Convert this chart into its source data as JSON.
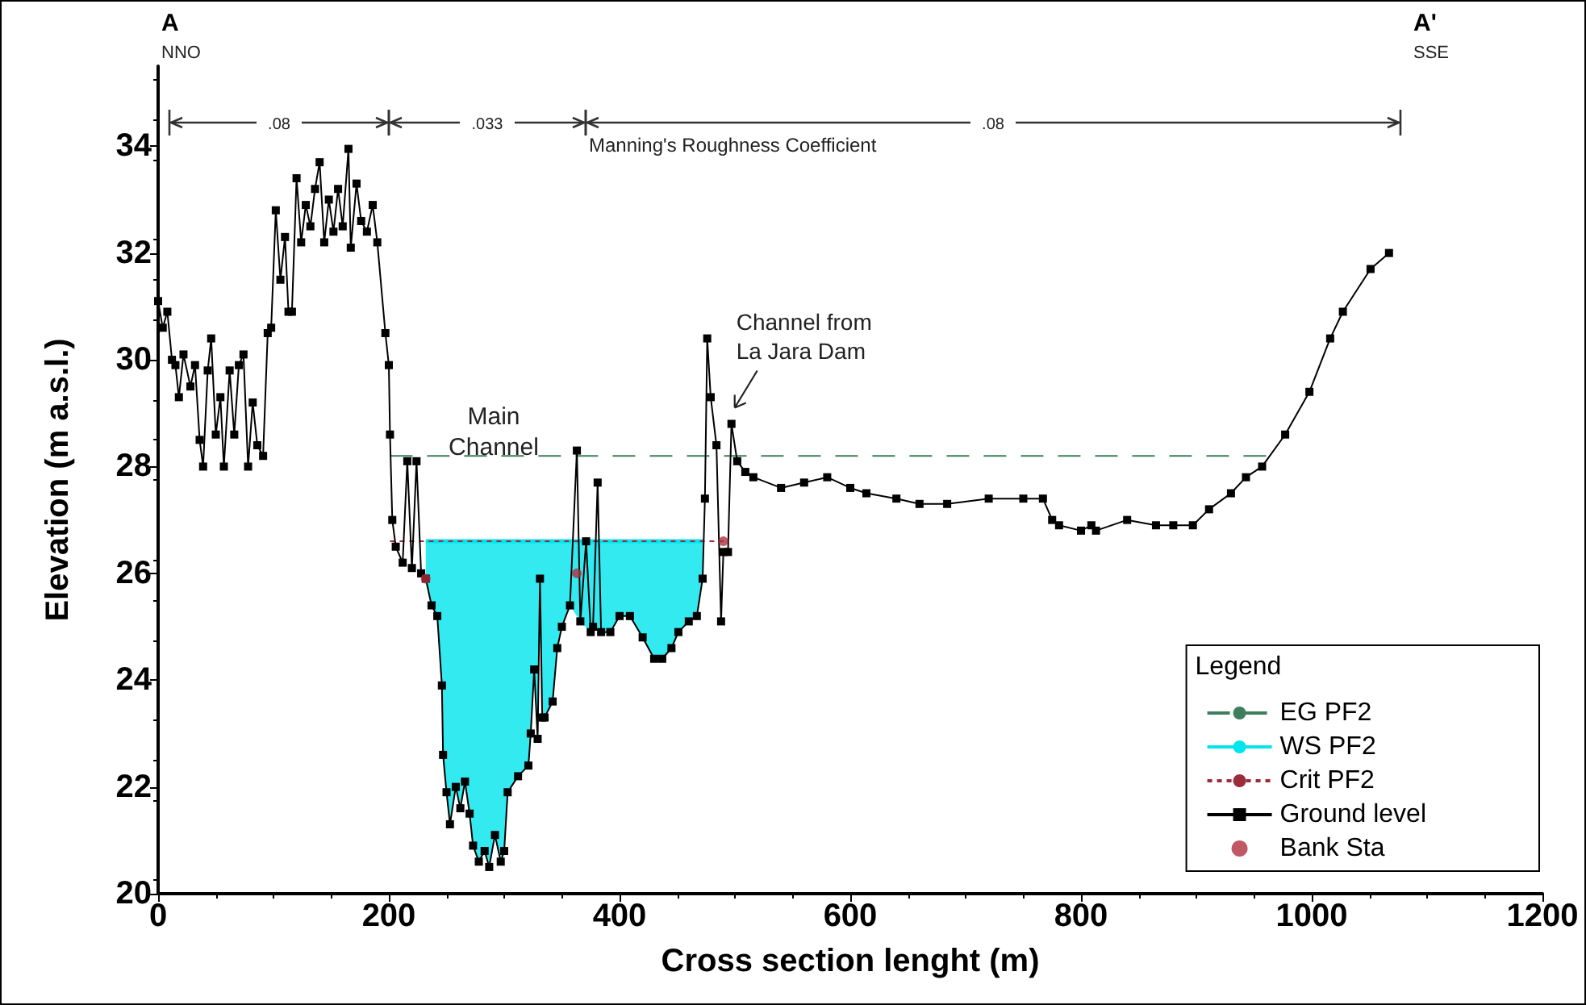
{
  "chart_data": {
    "type": "line",
    "xlabel": "Cross section lenght (m)",
    "ylabel": "Elevation (m a.s.l.)",
    "xlim": [
      0,
      1200
    ],
    "xticks": [
      0,
      200,
      400,
      600,
      800,
      1000,
      1200
    ],
    "ylim": [
      20,
      35.5
    ],
    "yticks": [
      20,
      22,
      24,
      26,
      28,
      30,
      32,
      34
    ],
    "grid": false,
    "legend": "bottom right",
    "legend_title": "Legend",
    "series": [
      {
        "name": "EG PF2",
        "type": "line",
        "color": "#3c7f5a",
        "line_style": "dashed",
        "marker": "none",
        "x": [
          201,
          962
        ],
        "values": [
          28.2,
          28.2
        ]
      },
      {
        "name": "WS PF2",
        "type": "line",
        "color": "#00e5ee",
        "x": [
          232,
          237,
          242,
          246,
          247,
          250,
          253,
          258,
          262,
          266,
          270,
          273,
          278,
          283,
          287,
          292,
          297,
          300,
          303,
          312,
          321,
          323,
          326,
          329,
          331,
          333,
          335,
          342,
          346,
          350,
          357,
          366,
          375,
          377,
          384,
          392,
          400,
          409,
          420,
          430,
          437,
          445,
          451,
          460,
          467,
          472
        ],
        "values": [
          26.6,
          26.6,
          26.6,
          26.6,
          26.6,
          26.6,
          26.6,
          26.6,
          26.6,
          26.6,
          26.6,
          26.6,
          26.6,
          26.6,
          26.6,
          26.6,
          26.6,
          26.6,
          26.6,
          26.6,
          26.6,
          26.6,
          26.6,
          26.6,
          26.6,
          26.6,
          26.6,
          26.6,
          26.6,
          26.6,
          26.6,
          26.6,
          26.6,
          26.6,
          26.6,
          26.6,
          26.6,
          26.6,
          26.6,
          26.6,
          26.6,
          26.6,
          26.6,
          26.6,
          26.6,
          26.6
        ],
        "upper": [
          26.6,
          26.6,
          26.6,
          26.6,
          26.6,
          26.6,
          26.6,
          26.6,
          26.6,
          26.6,
          26.6,
          26.6,
          26.6,
          26.6,
          26.6,
          26.6,
          26.6,
          26.6,
          26.6,
          26.6,
          26.6,
          26.6,
          26.6,
          26.6,
          26.6,
          26.6,
          26.6,
          26.6,
          26.6,
          26.6,
          26.6,
          26.6,
          26.6,
          26.6,
          26.6,
          26.6,
          26.6,
          26.6,
          26.6,
          26.6,
          26.6,
          26.6,
          26.6,
          26.6,
          26.6,
          26.6
        ],
        "lower": [
          25.9,
          25.4,
          25.2,
          23.9,
          22.6,
          21.9,
          21.3,
          22.0,
          21.6,
          22.1,
          21.5,
          20.9,
          20.6,
          20.8,
          20.5,
          21.1,
          20.6,
          20.8,
          21.9,
          22.2,
          22.4,
          23.0,
          24.2,
          22.9,
          25.9,
          23.3,
          23.3,
          23.6,
          24.6,
          25.0,
          25.4,
          25.1,
          24.9,
          25.0,
          24.9,
          24.9,
          25.2,
          25.2,
          24.8,
          24.4,
          24.4,
          24.6,
          24.9,
          25.1,
          25.2,
          25.9
        ]
      },
      {
        "name": "Crit PF2",
        "color": "#9b2c3c",
        "line_style": "dotted",
        "marker": "none",
        "x": [
          201,
          494
        ],
        "values": [
          26.6,
          26.6
        ]
      },
      {
        "name": "Ground level",
        "color": "#000000",
        "line_style": "solid",
        "marker": "square",
        "x": [
          0,
          4,
          8,
          12,
          15,
          18,
          22,
          28,
          32,
          36,
          39,
          43,
          46,
          50,
          54,
          57,
          62,
          66,
          70,
          74,
          78,
          82,
          86,
          91,
          95,
          98,
          102,
          106,
          110,
          113,
          116,
          120,
          124,
          128,
          132,
          136,
          140,
          144,
          148,
          152,
          156,
          160,
          165,
          167,
          172,
          176,
          181,
          186,
          190,
          197,
          200,
          201,
          203,
          206,
          212,
          216,
          220,
          224,
          228,
          232,
          237,
          242,
          246,
          247,
          250,
          253,
          258,
          262,
          266,
          270,
          273,
          278,
          283,
          287,
          292,
          297,
          300,
          303,
          312,
          321,
          323,
          326,
          329,
          331,
          333,
          335,
          342,
          346,
          350,
          357,
          363,
          366,
          371,
          375,
          377,
          381,
          384,
          392,
          400,
          409,
          420,
          430,
          437,
          445,
          451,
          460,
          467,
          472,
          474,
          476,
          479,
          484,
          488,
          490,
          494,
          497,
          502,
          509,
          516,
          540,
          560,
          580,
          600,
          614,
          640,
          660,
          684,
          720,
          750,
          767,
          775,
          781,
          800,
          809,
          813,
          840,
          865,
          880,
          897,
          911,
          930,
          943,
          957,
          977,
          998,
          1016,
          1027,
          1051,
          1067
        ],
        "values": [
          31.1,
          30.6,
          30.9,
          30.0,
          29.9,
          29.3,
          30.1,
          29.5,
          29.9,
          28.5,
          28.0,
          29.8,
          30.4,
          28.6,
          29.3,
          28.0,
          29.8,
          28.6,
          29.9,
          30.1,
          28.0,
          29.2,
          28.4,
          28.2,
          30.5,
          30.6,
          32.8,
          31.5,
          32.3,
          30.9,
          30.9,
          33.4,
          32.2,
          32.9,
          32.5,
          33.2,
          33.7,
          32.2,
          33.0,
          32.4,
          33.2,
          32.5,
          33.95,
          32.1,
          33.3,
          32.6,
          32.4,
          32.9,
          32.2,
          30.5,
          29.9,
          28.6,
          27.0,
          26.5,
          26.2,
          28.1,
          26.1,
          28.1,
          26.0,
          25.9,
          25.4,
          25.2,
          23.9,
          22.6,
          21.9,
          21.3,
          22.0,
          21.6,
          22.1,
          21.5,
          20.9,
          20.6,
          20.8,
          20.5,
          21.1,
          20.6,
          20.8,
          21.9,
          22.2,
          22.4,
          23.0,
          24.2,
          22.9,
          25.9,
          23.3,
          23.3,
          23.6,
          24.6,
          25.0,
          25.4,
          28.3,
          25.1,
          26.6,
          24.9,
          25.0,
          27.7,
          24.9,
          24.9,
          25.2,
          25.2,
          24.8,
          24.4,
          24.4,
          24.6,
          24.9,
          25.1,
          25.2,
          25.9,
          27.4,
          30.4,
          29.3,
          28.4,
          25.1,
          26.4,
          26.4,
          28.8,
          28.1,
          27.9,
          27.8,
          27.6,
          27.7,
          27.8,
          27.6,
          27.5,
          27.4,
          27.3,
          27.3,
          27.4,
          27.4,
          27.4,
          27.0,
          26.9,
          26.8,
          26.9,
          26.8,
          27.0,
          26.9,
          26.9,
          26.9,
          27.2,
          27.5,
          27.8,
          28.0,
          28.6,
          29.4,
          30.4,
          30.9,
          31.7,
          32.0
        ]
      },
      {
        "name": "Bank Sta",
        "type": "scatter",
        "color": "#b0303c",
        "marker": "circle",
        "x": [
          232,
          363,
          490
        ],
        "values": [
          25.9,
          26.0,
          26.6
        ]
      }
    ],
    "annotations": [
      "A",
      "NNO",
      "A'",
      "SSE",
      ".08",
      ".033",
      ".08",
      "Manning's Roughness Coefficient",
      "Main Channel",
      {
        "text": "Channel from La Jara Dam",
        "x": 497,
        "y": 28.8
      }
    ]
  }
}
